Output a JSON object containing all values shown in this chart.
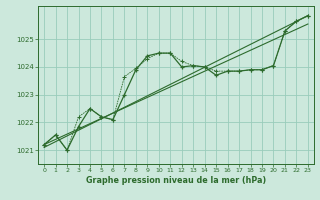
{
  "xlabel": "Graphe pression niveau de la mer (hPa)",
  "bg_color": "#cce8dc",
  "grid_color": "#99ccbb",
  "line_color": "#2d6b2d",
  "x_ticks": [
    0,
    1,
    2,
    3,
    4,
    5,
    6,
    7,
    8,
    9,
    10,
    11,
    12,
    13,
    14,
    15,
    16,
    17,
    18,
    19,
    20,
    21,
    22,
    23
  ],
  "ylim": [
    1020.5,
    1026.2
  ],
  "yticks": [
    1021,
    1022,
    1023,
    1024,
    1025
  ],
  "series1": [
    1021.2,
    1021.55,
    1021.0,
    1021.85,
    1022.5,
    1022.2,
    1022.1,
    1023.0,
    1023.9,
    1024.4,
    1024.5,
    1024.5,
    1024.0,
    1024.05,
    1024.0,
    1023.7,
    1023.85,
    1023.85,
    1023.9,
    1023.9,
    1024.05,
    1025.3,
    1025.65,
    1025.85
  ],
  "series2": [
    1021.2,
    1021.55,
    1021.0,
    1022.2,
    1022.5,
    1022.2,
    1022.1,
    1023.65,
    1023.95,
    1024.3,
    1024.5,
    1024.5,
    1024.2,
    1024.05,
    1024.0,
    1023.85,
    1023.85,
    1023.85,
    1023.9,
    1023.9,
    1024.05,
    1025.3,
    1025.65,
    1025.85
  ],
  "line1_x": [
    0,
    23
  ],
  "line1_y": [
    1021.1,
    1025.85
  ],
  "line2_x": [
    0,
    23
  ],
  "line2_y": [
    1021.2,
    1025.55
  ]
}
